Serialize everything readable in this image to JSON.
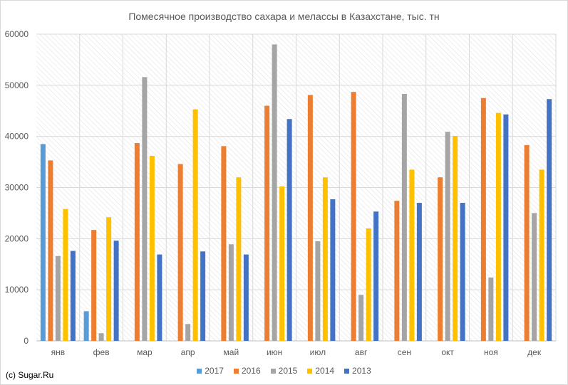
{
  "chart_data": {
    "type": "bar",
    "title": "Помесячное производство сахара и мелассы в Казахстане, тыс. тн",
    "xlabel": "",
    "ylabel": "",
    "ylim": [
      0,
      60000
    ],
    "yticks": [
      0,
      10000,
      20000,
      30000,
      40000,
      50000,
      60000
    ],
    "grid": true,
    "legend_position": "bottom",
    "categories": [
      "янв",
      "фев",
      "мар",
      "апр",
      "май",
      "июн",
      "июл",
      "авг",
      "сен",
      "окт",
      "ноя",
      "дек"
    ],
    "series": [
      {
        "name": "2017",
        "color": "#5b9bd5",
        "values": [
          38500,
          5800,
          null,
          null,
          null,
          null,
          null,
          null,
          null,
          null,
          null,
          null
        ]
      },
      {
        "name": "2016",
        "color": "#ed7d31",
        "values": [
          35300,
          21700,
          38700,
          34600,
          38100,
          46000,
          48100,
          48700,
          27400,
          32000,
          47500,
          38300
        ]
      },
      {
        "name": "2015",
        "color": "#a5a5a5",
        "values": [
          16600,
          1500,
          51600,
          3300,
          18900,
          58000,
          19500,
          9000,
          48300,
          40900,
          12400,
          25000
        ]
      },
      {
        "name": "2014",
        "color": "#ffc000",
        "values": [
          25800,
          24200,
          36200,
          45300,
          32000,
          30200,
          32000,
          22000,
          33500,
          40100,
          44600,
          33500
        ]
      },
      {
        "name": "2013",
        "color": "#4472c4",
        "values": [
          17600,
          19600,
          16900,
          17500,
          16900,
          43400,
          27700,
          25300,
          27000,
          27000,
          44300,
          47300
        ]
      }
    ]
  },
  "credit": "(c) Sugar.Ru"
}
